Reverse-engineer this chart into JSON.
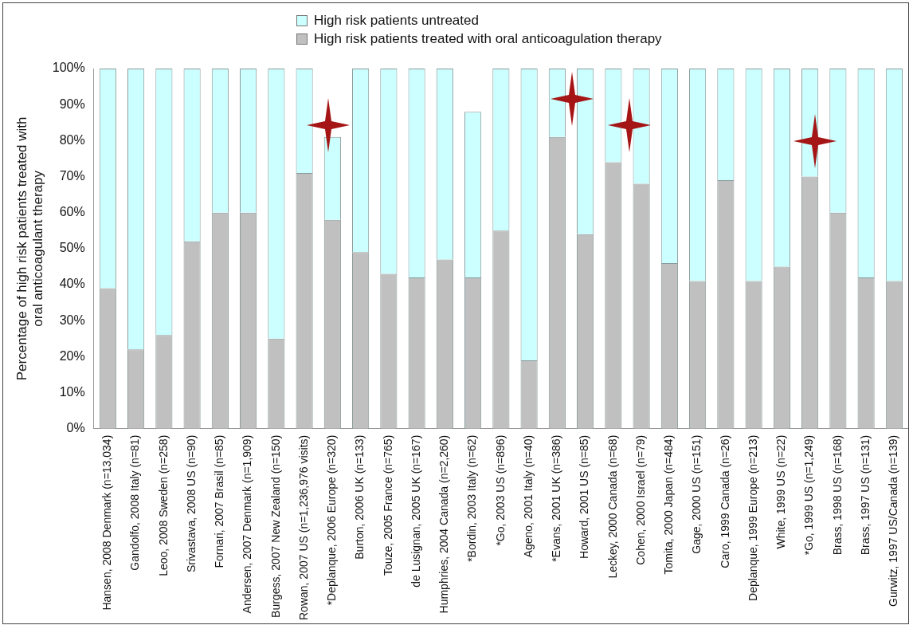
{
  "chart_data": {
    "type": "bar",
    "stacked": true,
    "ylabel": "Percentage of high risk patients treated with oral anticoagulant therapy",
    "categories": [
      "Hansen, 2008 Denmark (n=13,034)",
      "Gandolfo, 2008 Italy (n=81)",
      "Leoo, 2008 Sweden (n=258)",
      "Srivastava, 2008 US (n=90)",
      "Fornari, 2007 Brasil (n=85)",
      "Andersen, 2007 Denmark (n=1,909)",
      "Burgess, 2007 New Zealand (n=150)",
      "Rowan, 2007 US (n=1,236,976 visits)",
      "*Deplanque, 2006 Europe (n=320)",
      "Burton, 2006 UK (n=133)",
      "Touze, 2005 France (n=765)",
      "de Lusignan, 2005 UK (n=167)",
      "Humphries, 2004 Canada (n=2,260)",
      "*Bordin, 2003 Italy (n=62)",
      "*Go, 2003 US (n=896)",
      "Ageno, 2001 Italy (n=40)",
      "*Evans, 2001 UK (n=386)",
      "Howard, 2001 US (n=85)",
      "Leckey, 2000 Canada (n=68)",
      "Cohen, 2000 Israel (n=79)",
      "Tomita, 2000 Japan (n=484)",
      "Gage, 2000 US (n=151)",
      "Caro, 1999 Canada (n=26)",
      "Deplanque, 1999 Europe (n=213)",
      "White, 1999 US (n=22)",
      "*Go, 1999 US (n=1,249)",
      "Brass, 1998 US (n=168)",
      "Brass, 1997 US (n=131)",
      "Gurwitz, 1997 US/Canada (n=139)"
    ],
    "series": [
      {
        "name": "High risk patients treated with oral anticoagulation therapy",
        "color": "#c0c0c0",
        "values": [
          39,
          22,
          26,
          52,
          60,
          60,
          25,
          71,
          58,
          49,
          43,
          42,
          47,
          42,
          55,
          19,
          81,
          54,
          74,
          68,
          46,
          41,
          69,
          41,
          45,
          70,
          60,
          42,
          41
        ]
      },
      {
        "name": "High risk patients untreated",
        "color": "#ccffff",
        "values": [
          61,
          78,
          74,
          48,
          40,
          40,
          75,
          29,
          23,
          51,
          57,
          58,
          53,
          46,
          45,
          81,
          19,
          46,
          26,
          32,
          54,
          59,
          31,
          59,
          55,
          30,
          40,
          58,
          59
        ]
      }
    ],
    "ylim": [
      0,
      100
    ],
    "yticks": [
      {
        "value": 0,
        "label": "0%"
      },
      {
        "value": 10,
        "label": "10%"
      },
      {
        "value": 20,
        "label": "20%"
      },
      {
        "value": 30,
        "label": "30%"
      },
      {
        "value": 40,
        "label": "40%"
      },
      {
        "value": 50,
        "label": "50%"
      },
      {
        "value": 60,
        "label": "60%"
      },
      {
        "value": 70,
        "label": "70%"
      },
      {
        "value": 80,
        "label": "80%"
      },
      {
        "value": 90,
        "label": "90%"
      },
      {
        "value": 100,
        "label": "100%"
      }
    ],
    "grid": false,
    "legend": "top"
  }
}
